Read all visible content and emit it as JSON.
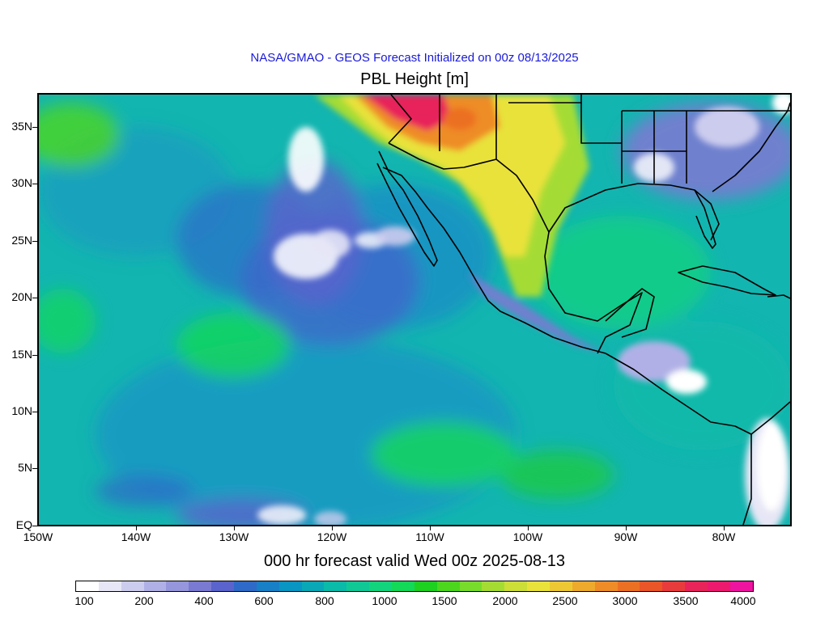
{
  "header": {
    "subtitle": "NASA/GMAO - GEOS Forecast Initialized on 00z 08/13/2025",
    "title": "PBL Height [m]"
  },
  "footer": {
    "valid_time": "000 hr forecast valid Wed 00z 2025-08-13"
  },
  "map": {
    "lat_labels": [
      "35N",
      "30N",
      "25N",
      "20N",
      "15N",
      "10N",
      "5N",
      "EQ"
    ],
    "lon_labels": [
      "150W",
      "140W",
      "130W",
      "120W",
      "110W",
      "100W",
      "90W",
      "80W"
    ],
    "lon_range": [
      -150,
      -73
    ],
    "lat_range": [
      0,
      38
    ],
    "colors": {
      "ocean_base": "#13b5b0",
      "ocean_cool": "#1896c4",
      "stable_low": "#5a64cc",
      "very_low": "#ffffff",
      "land_high": "#e9e23a",
      "land_peak": "#ec1a6e",
      "boundary": "#000000"
    }
  },
  "colorbar": {
    "labels": [
      "100",
      "200",
      "400",
      "600",
      "800",
      "1000",
      "1500",
      "2000",
      "2500",
      "3000",
      "3500",
      "4000"
    ],
    "colors": [
      "#ffffff",
      "#e6e6f6",
      "#ccccee",
      "#b0b0e6",
      "#9696dc",
      "#7a7ad2",
      "#5a64cc",
      "#2f6ac8",
      "#1880c6",
      "#0a96c2",
      "#0aa8b6",
      "#0bbaa8",
      "#10c896",
      "#12d47c",
      "#14d858",
      "#1ed020",
      "#4cd61e",
      "#78dc2c",
      "#a4dc34",
      "#ccde38",
      "#e9e23a",
      "#eec834",
      "#eeaa2c",
      "#ee8c28",
      "#ec7024",
      "#ea5628",
      "#e83c3c",
      "#e8245a",
      "#ec1a6e",
      "#ee14a0"
    ]
  }
}
